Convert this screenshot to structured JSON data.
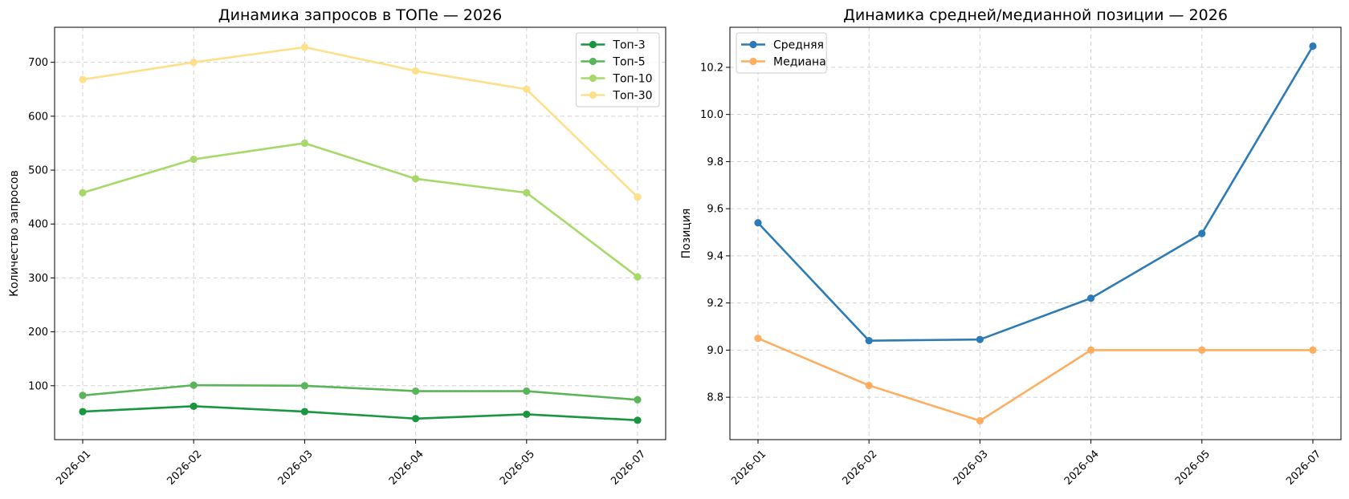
{
  "chart_data": [
    {
      "type": "line",
      "title": "Динамика запросов в ТОПе — 2026",
      "xlabel": "",
      "ylabel": "Количество запросов",
      "categories": [
        "2026-01",
        "2026-02",
        "2026-03",
        "2026-04",
        "2026-05",
        "2026-07"
      ],
      "ylim": [
        0,
        765
      ],
      "yticks": [
        100,
        200,
        300,
        400,
        500,
        600,
        700
      ],
      "grid": true,
      "legend_position": "top-right",
      "series": [
        {
          "name": "Топ-3",
          "color": "#1a9641",
          "values": [
            52,
            62,
            52,
            39,
            47,
            36
          ]
        },
        {
          "name": "Топ-5",
          "color": "#5ab55a",
          "values": [
            82,
            101,
            100,
            90,
            90,
            74
          ]
        },
        {
          "name": "Топ-10",
          "color": "#a6d96a",
          "values": [
            458,
            520,
            550,
            484,
            458,
            302
          ]
        },
        {
          "name": "Топ-30",
          "color": "#fee08b",
          "values": [
            668,
            700,
            728,
            684,
            650,
            450
          ]
        }
      ]
    },
    {
      "type": "line",
      "title": "Динамика средней/медианной позиции — 2026",
      "xlabel": "",
      "ylabel": "Позиция",
      "categories": [
        "2026-01",
        "2026-02",
        "2026-03",
        "2026-04",
        "2026-05",
        "2026-07"
      ],
      "ylim": [
        8.62,
        10.37
      ],
      "yticks": [
        8.8,
        9.0,
        9.2,
        9.4,
        9.6,
        9.8,
        10.0,
        10.2
      ],
      "grid": true,
      "legend_position": "top-left",
      "series": [
        {
          "name": "Средняя",
          "color": "#2c7bb6",
          "values": [
            9.54,
            9.04,
            9.045,
            9.22,
            9.495,
            10.29
          ]
        },
        {
          "name": "Медиана",
          "color": "#fdae61",
          "values": [
            9.05,
            8.85,
            8.7,
            9.0,
            9.0,
            9.0
          ]
        }
      ]
    }
  ]
}
